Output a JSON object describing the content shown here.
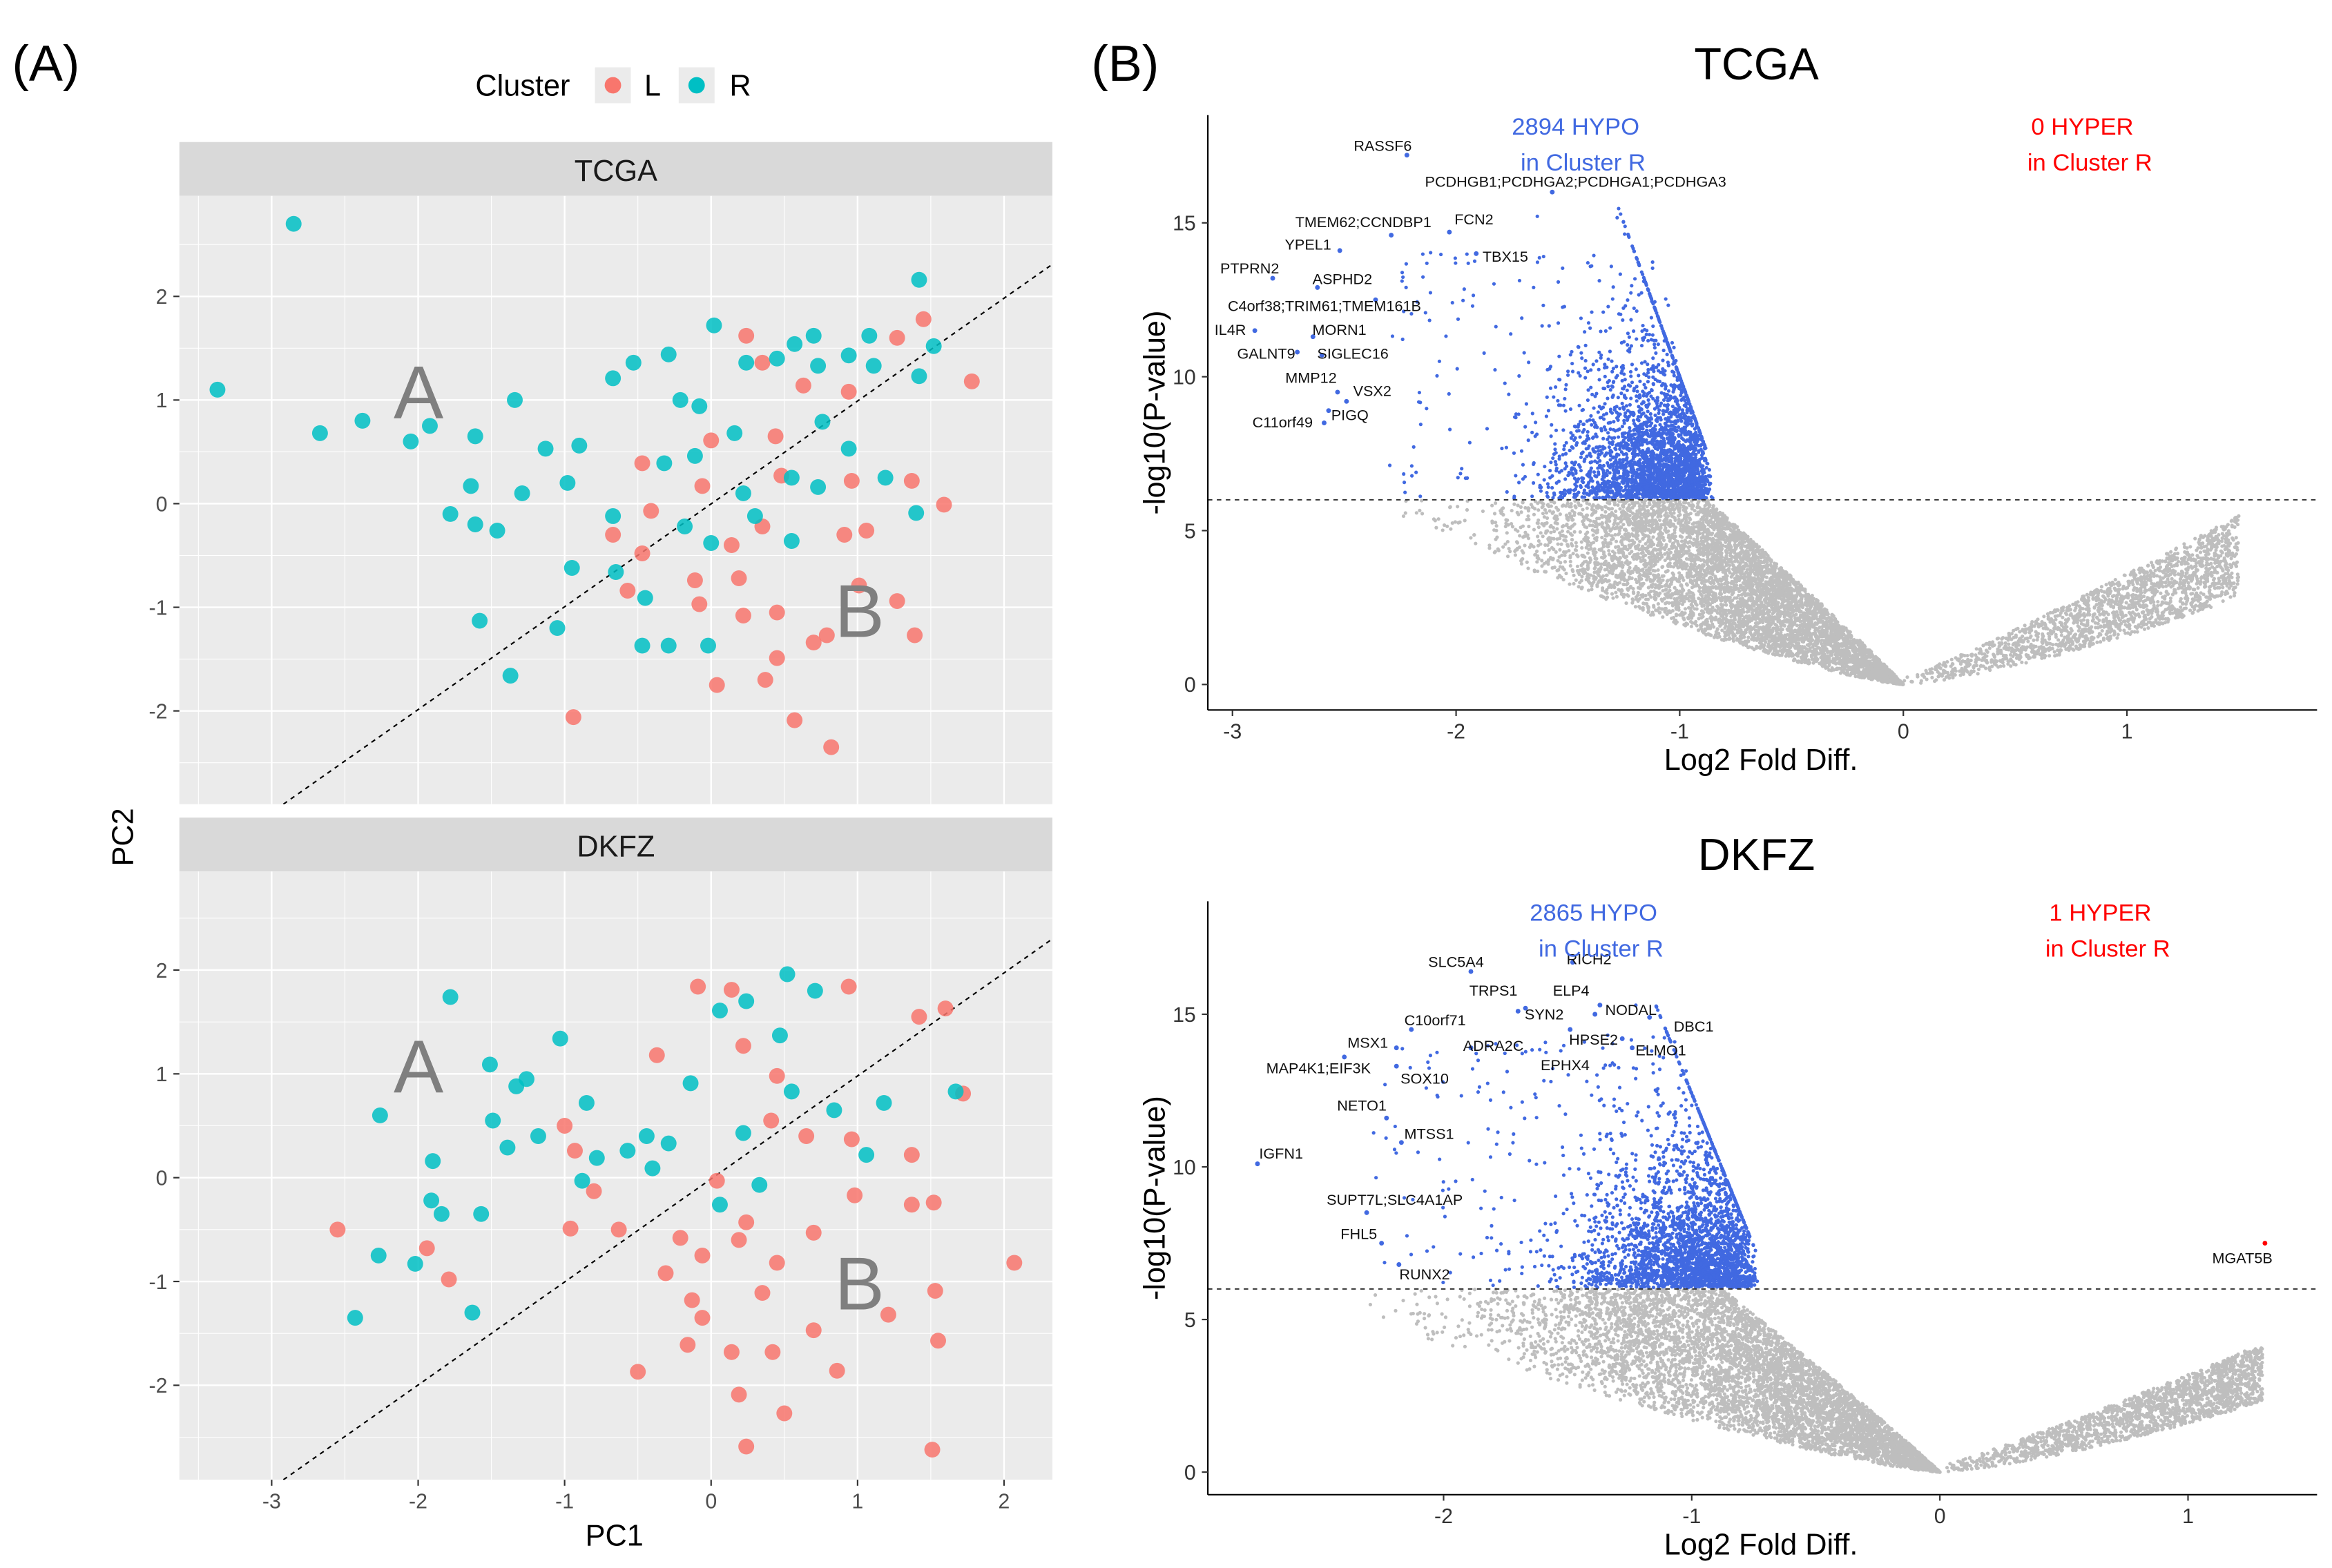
{
  "panel_labels": {
    "a": "(A)",
    "b": "(B)"
  },
  "legend": {
    "title": "Cluster",
    "items": [
      {
        "label": "L",
        "color": "#F8766D"
      },
      {
        "label": "R",
        "color": "#00BFC4"
      }
    ]
  },
  "pca_axes": {
    "xlabel": "PC1",
    "ylabel": "PC2"
  },
  "chart_data": [
    {
      "type": "scatter",
      "title": "TCGA",
      "xlim": [
        -3.63,
        2.33
      ],
      "ylim": [
        -2.9,
        2.97
      ],
      "xticks": [
        -3,
        -2,
        -1,
        0,
        1,
        2
      ],
      "yticks": [
        -2,
        -1,
        0,
        1,
        2
      ],
      "grid": true,
      "region_labels": [
        "A",
        "B"
      ],
      "divider": {
        "from": [
          -2.92,
          -2.9
        ],
        "to": [
          2.33,
          2.31
        ]
      },
      "series": [
        {
          "name": "L",
          "points": [
            [
              0.24,
              1.62
            ],
            [
              0.35,
              1.36
            ],
            [
              0.63,
              1.14
            ],
            [
              0.94,
              1.08
            ],
            [
              1.27,
              1.6
            ],
            [
              1.45,
              1.78
            ],
            [
              1.78,
              1.18
            ],
            [
              0.44,
              0.65
            ],
            [
              0,
              0.61
            ],
            [
              0.48,
              0.27
            ],
            [
              0.96,
              0.22
            ],
            [
              1.37,
              0.22
            ],
            [
              1.59,
              -0.01
            ],
            [
              -0.47,
              0.39
            ],
            [
              -0.41,
              -0.07
            ],
            [
              -0.67,
              -0.3
            ],
            [
              -0.47,
              -0.48
            ],
            [
              -0.11,
              -0.74
            ],
            [
              -0.08,
              -0.97
            ],
            [
              0.14,
              -0.4
            ],
            [
              0.35,
              -0.22
            ],
            [
              0.19,
              -0.72
            ],
            [
              0.45,
              -1.05
            ],
            [
              0.22,
              -1.08
            ],
            [
              0.04,
              -1.75
            ],
            [
              0.37,
              -1.7
            ],
            [
              0.45,
              -1.49
            ],
            [
              0.7,
              -1.34
            ],
            [
              0.79,
              -1.27
            ],
            [
              1.01,
              -0.79
            ],
            [
              1.27,
              -0.94
            ],
            [
              1.39,
              -1.27
            ],
            [
              0.91,
              -0.3
            ],
            [
              1.06,
              -0.26
            ],
            [
              -0.94,
              -2.06
            ],
            [
              0.57,
              -2.09
            ],
            [
              0.82,
              -2.35
            ],
            [
              -0.57,
              -0.84
            ],
            [
              -0.06,
              0.17
            ]
          ]
        },
        {
          "name": "R",
          "points": [
            [
              -2.85,
              2.7
            ],
            [
              -3.37,
              1.1
            ],
            [
              -2.67,
              0.68
            ],
            [
              -2.38,
              0.8
            ],
            [
              -2.05,
              0.6
            ],
            [
              -1.92,
              0.75
            ],
            [
              -1.61,
              0.65
            ],
            [
              -1.64,
              0.17
            ],
            [
              -1.78,
              -0.1
            ],
            [
              -1.61,
              -0.2
            ],
            [
              -1.46,
              -0.26
            ],
            [
              -1.29,
              0.1
            ],
            [
              -1.13,
              0.53
            ],
            [
              -0.98,
              0.2
            ],
            [
              -0.9,
              0.56
            ],
            [
              -1.34,
              1.0
            ],
            [
              -1.58,
              -1.13
            ],
            [
              -1.37,
              -1.66
            ],
            [
              -1.05,
              -1.2
            ],
            [
              -0.95,
              -0.62
            ],
            [
              -0.67,
              -0.12
            ],
            [
              -0.65,
              -0.66
            ],
            [
              -0.45,
              -0.91
            ],
            [
              -0.47,
              -1.37
            ],
            [
              -0.29,
              -1.37
            ],
            [
              -0.02,
              -1.37
            ],
            [
              -0.18,
              -0.22
            ],
            [
              0,
              -0.38
            ],
            [
              -0.67,
              1.21
            ],
            [
              -0.53,
              1.36
            ],
            [
              -0.29,
              1.44
            ],
            [
              0.02,
              1.72
            ],
            [
              -0.21,
              1.0
            ],
            [
              -0.08,
              0.94
            ],
            [
              -0.32,
              0.39
            ],
            [
              -0.11,
              0.46
            ],
            [
              0.16,
              0.68
            ],
            [
              0.24,
              1.36
            ],
            [
              0.45,
              1.4
            ],
            [
              0.57,
              1.54
            ],
            [
              0.7,
              1.62
            ],
            [
              0.73,
              1.33
            ],
            [
              0.94,
              1.43
            ],
            [
              1.08,
              1.62
            ],
            [
              1.11,
              1.33
            ],
            [
              1.42,
              2.16
            ],
            [
              1.52,
              1.52
            ],
            [
              1.42,
              1.23
            ],
            [
              0.94,
              0.53
            ],
            [
              1.19,
              0.25
            ],
            [
              1.4,
              -0.09
            ],
            [
              0.73,
              0.16
            ],
            [
              0.55,
              0.25
            ],
            [
              0.3,
              -0.12
            ],
            [
              0.55,
              -0.36
            ],
            [
              0.22,
              0.1
            ],
            [
              0.76,
              0.79
            ]
          ]
        }
      ]
    },
    {
      "type": "scatter",
      "title": "DKFZ",
      "xlim": [
        -3.63,
        2.33
      ],
      "ylim": [
        -2.91,
        2.95
      ],
      "xticks": [
        -3,
        -2,
        -1,
        0,
        1,
        2
      ],
      "yticks": [
        -2,
        -1,
        0,
        1,
        2
      ],
      "grid": true,
      "region_labels": [
        "A",
        "B"
      ],
      "divider": {
        "from": [
          -2.92,
          -2.91
        ],
        "to": [
          2.33,
          2.3
        ]
      },
      "series": [
        {
          "name": "L",
          "points": [
            [
              -2.55,
              -0.5
            ],
            [
              -1.79,
              -0.98
            ],
            [
              -1.94,
              -0.68
            ],
            [
              -1.0,
              0.5
            ],
            [
              -0.93,
              0.26
            ],
            [
              -0.8,
              -0.13
            ],
            [
              -0.96,
              -0.49
            ],
            [
              -0.63,
              -0.5
            ],
            [
              -0.5,
              -1.87
            ],
            [
              -0.37,
              1.18
            ],
            [
              -0.09,
              1.84
            ],
            [
              0.14,
              1.81
            ],
            [
              0.94,
              1.84
            ],
            [
              1.42,
              1.55
            ],
            [
              1.6,
              1.63
            ],
            [
              0.22,
              1.27
            ],
            [
              0.45,
              0.98
            ],
            [
              0.41,
              0.55
            ],
            [
              0.65,
              0.4
            ],
            [
              0.96,
              0.37
            ],
            [
              1.37,
              0.22
            ],
            [
              1.52,
              -0.24
            ],
            [
              1.37,
              -0.26
            ],
            [
              1.72,
              0.81
            ],
            [
              2.07,
              -0.82
            ],
            [
              1.53,
              -1.09
            ],
            [
              1.55,
              -1.57
            ],
            [
              0.86,
              -1.86
            ],
            [
              1.21,
              -1.32
            ],
            [
              1.51,
              -2.62
            ],
            [
              0.24,
              -2.59
            ],
            [
              0.5,
              -2.27
            ],
            [
              0.19,
              -2.09
            ],
            [
              0.14,
              -1.68
            ],
            [
              0.42,
              -1.68
            ],
            [
              -0.16,
              -1.61
            ],
            [
              -0.13,
              -1.18
            ],
            [
              -0.31,
              -0.92
            ],
            [
              -0.06,
              -0.75
            ],
            [
              0.19,
              -0.6
            ],
            [
              0.45,
              -0.82
            ],
            [
              0.7,
              -0.53
            ],
            [
              0.98,
              -0.17
            ],
            [
              0.04,
              -0.03
            ],
            [
              -0.21,
              -0.58
            ],
            [
              0.35,
              -1.11
            ],
            [
              0.7,
              -1.47
            ],
            [
              -0.06,
              -1.35
            ],
            [
              0.24,
              -0.43
            ]
          ]
        },
        {
          "name": "R",
          "points": [
            [
              -1.78,
              1.74
            ],
            [
              -1.03,
              1.34
            ],
            [
              -2.26,
              0.6
            ],
            [
              -1.9,
              0.16
            ],
            [
              -1.91,
              -0.22
            ],
            [
              -1.84,
              -0.35
            ],
            [
              -1.57,
              -0.35
            ],
            [
              -2.27,
              -0.75
            ],
            [
              -2.02,
              -0.83
            ],
            [
              -1.63,
              -1.3
            ],
            [
              -2.43,
              -1.35
            ],
            [
              -1.51,
              1.09
            ],
            [
              -1.33,
              0.88
            ],
            [
              -1.26,
              0.95
            ],
            [
              -1.49,
              0.55
            ],
            [
              -1.39,
              0.29
            ],
            [
              -1.18,
              0.4
            ],
            [
              -0.85,
              0.72
            ],
            [
              -0.78,
              0.19
            ],
            [
              -0.88,
              -0.03
            ],
            [
              -0.57,
              0.26
            ],
            [
              -0.44,
              0.4
            ],
            [
              -0.29,
              0.33
            ],
            [
              -0.4,
              0.09
            ],
            [
              -0.14,
              0.91
            ],
            [
              0.06,
              1.61
            ],
            [
              0.24,
              1.7
            ],
            [
              0.52,
              1.96
            ],
            [
              0.71,
              1.8
            ],
            [
              0.47,
              1.37
            ],
            [
              0.22,
              0.43
            ],
            [
              0.06,
              -0.26
            ],
            [
              0.55,
              0.83
            ],
            [
              0.84,
              0.65
            ],
            [
              1.06,
              0.22
            ],
            [
              1.18,
              0.72
            ],
            [
              1.67,
              0.83
            ],
            [
              0.33,
              -0.07
            ]
          ]
        }
      ]
    },
    {
      "type": "scatter",
      "title": "TCGA",
      "xlabel": "Log2 Fold Diff.",
      "ylabel": "-log10(P-value)",
      "xlim": [
        -3.11,
        1.85
      ],
      "ylim": [
        -0.83,
        18.5
      ],
      "xticks": [
        -3,
        -2,
        -1,
        0,
        1
      ],
      "yticks": [
        0,
        5,
        10,
        15
      ],
      "threshold": 6,
      "hypo_count": 2894,
      "hyper_count": 0,
      "annotations": {
        "hypo": {
          "line1": "2894 HYPO",
          "line2": "in Cluster R"
        },
        "hyper": {
          "line1": "0 HYPER",
          "line2": "in Cluster R"
        }
      },
      "colors": {
        "hypo": "#4169E1",
        "ns": "#BEBEBE",
        "hyper": "#FF0000"
      },
      "labeled_genes": [
        {
          "gene": "RASSF6",
          "x": -2.22,
          "y": 17.2
        },
        {
          "gene": "PCDHGB1;PCDHGA2;PCDHGA1;PCDHGA3",
          "x": -1.57,
          "y": 16.0
        },
        {
          "gene": "TMEM62;CCNDBP1",
          "x": -2.29,
          "y": 14.6
        },
        {
          "gene": "FCN2",
          "x": -2.03,
          "y": 14.7
        },
        {
          "gene": "YPEL1",
          "x": -2.52,
          "y": 14.1
        },
        {
          "gene": "TBX15",
          "x": -1.91,
          "y": 14.0
        },
        {
          "gene": "PTPRN2",
          "x": -2.82,
          "y": 13.2
        },
        {
          "gene": "ASPHD2",
          "x": -2.62,
          "y": 12.9
        },
        {
          "gene": "C4orf38;TRIM61;TMEM161B",
          "x": -2.36,
          "y": 12.5
        },
        {
          "gene": "IL4R",
          "x": -2.9,
          "y": 11.5
        },
        {
          "gene": "MORN1",
          "x": -2.64,
          "y": 11.3
        },
        {
          "gene": "GALNT9",
          "x": -2.71,
          "y": 10.8
        },
        {
          "gene": "SIGLEC16",
          "x": -2.6,
          "y": 10.7
        },
        {
          "gene": "MMP12",
          "x": -2.53,
          "y": 9.5
        },
        {
          "gene": "VSX2",
          "x": -2.49,
          "y": 9.2
        },
        {
          "gene": "PIGQ",
          "x": -2.57,
          "y": 8.9
        },
        {
          "gene": "C11orf49",
          "x": -2.59,
          "y": 8.5
        }
      ]
    },
    {
      "type": "scatter",
      "title": "DKFZ",
      "xlabel": "Log2 Fold Diff.",
      "ylabel": "-log10(P-value)",
      "xlim": [
        -2.95,
        1.52
      ],
      "ylim": [
        -0.74,
        18.7
      ],
      "xticks": [
        -2,
        -1,
        0,
        1
      ],
      "yticks": [
        0,
        5,
        10,
        15
      ],
      "threshold": 6,
      "hypo_count": 2865,
      "hyper_count": 1,
      "annotations": {
        "hypo": {
          "line1": "2865 HYPO",
          "line2": "in Cluster R"
        },
        "hyper": {
          "line1": "1 HYPER",
          "line2": "in Cluster R"
        }
      },
      "colors": {
        "hypo": "#4169E1",
        "ns": "#BEBEBE",
        "hyper": "#FF0000"
      },
      "labeled_genes": [
        {
          "gene": "SLC5A4",
          "x": -1.89,
          "y": 16.4
        },
        {
          "gene": "RICH2",
          "x": -1.48,
          "y": 16.7
        },
        {
          "gene": "TRPS1",
          "x": -1.7,
          "y": 15.1
        },
        {
          "gene": "ELP4",
          "x": -1.39,
          "y": 15.0
        },
        {
          "gene": "SYN2",
          "x": -1.67,
          "y": 15.2
        },
        {
          "gene": "NODAL",
          "x": -1.37,
          "y": 15.3
        },
        {
          "gene": "DBC1",
          "x": -1.17,
          "y": 14.9
        },
        {
          "gene": "C10orf71",
          "x": -2.13,
          "y": 14.5
        },
        {
          "gene": "MSX1",
          "x": -2.19,
          "y": 13.9
        },
        {
          "gene": "ADRA2C",
          "x": -1.89,
          "y": 13.9
        },
        {
          "gene": "HPSE2",
          "x": -1.28,
          "y": 14.2
        },
        {
          "gene": "ELMO1",
          "x": -1.24,
          "y": 13.9
        },
        {
          "gene": "MAP4K1;EIF3K",
          "x": -2.4,
          "y": 13.6
        },
        {
          "gene": "EPHX4",
          "x": -1.49,
          "y": 14.5
        },
        {
          "gene": "SOX10",
          "x": -2.19,
          "y": 13.3
        },
        {
          "gene": "NETO1",
          "x": -2.23,
          "y": 11.6
        },
        {
          "gene": "MTSS1",
          "x": -2.17,
          "y": 10.8
        },
        {
          "gene": "IGFN1",
          "x": -2.75,
          "y": 10.1
        },
        {
          "gene": "SUPT7L;SLC4A1AP",
          "x": -2.31,
          "y": 8.5
        },
        {
          "gene": "FHL5",
          "x": -2.25,
          "y": 7.5
        },
        {
          "gene": "RUNX2",
          "x": -2.18,
          "y": 6.8
        },
        {
          "gene": "MGAT5B",
          "x": 1.31,
          "y": 7.5,
          "hyper": true
        }
      ]
    }
  ]
}
